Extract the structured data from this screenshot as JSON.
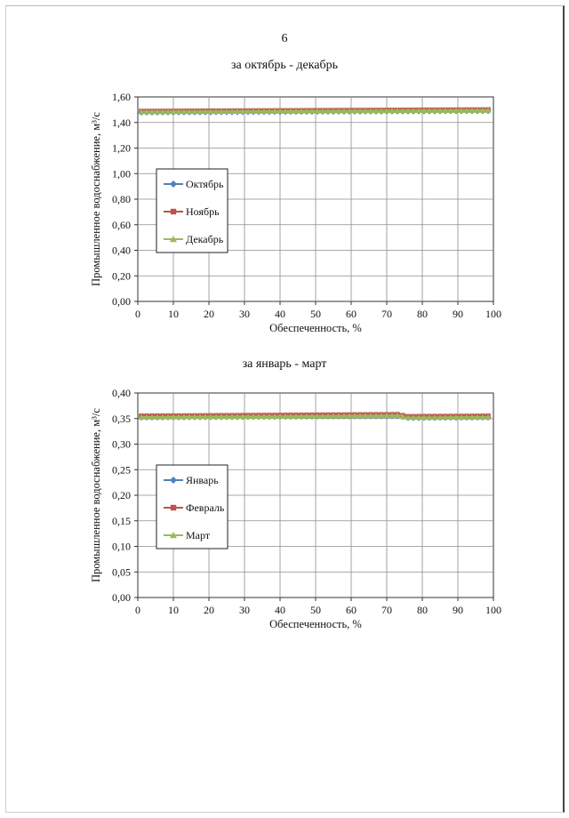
{
  "page": {
    "number": "6"
  },
  "chart_data": [
    {
      "type": "line",
      "title": "за октябрь - декабрь",
      "xlabel": "Обеспеченность, %",
      "ylabel": "Промышленное водоснабжение, м³/с",
      "xlim": [
        0,
        100
      ],
      "ylim": [
        0,
        1.6
      ],
      "x_ticks": [
        "0",
        "10",
        "20",
        "30",
        "40",
        "50",
        "60",
        "70",
        "80",
        "90",
        "100"
      ],
      "y_ticks": [
        "0,00",
        "0,20",
        "0,40",
        "0,60",
        "0,80",
        "1,00",
        "1,20",
        "1,40",
        "1,60"
      ],
      "grid": true,
      "legend_position": "left",
      "series": [
        {
          "name": "Октябрь",
          "color": "#4f81bd",
          "marker": "diamond",
          "x": [
            1,
            99
          ],
          "y": [
            1.478,
            1.49
          ]
        },
        {
          "name": "Ноябрь",
          "color": "#c0504d",
          "marker": "square",
          "x": [
            1,
            99
          ],
          "y": [
            1.488,
            1.5
          ]
        },
        {
          "name": "Декабрь",
          "color": "#9bbb59",
          "marker": "triangle",
          "x": [
            1,
            99
          ],
          "y": [
            1.484,
            1.496
          ]
        }
      ]
    },
    {
      "type": "line",
      "title": "за январь - март",
      "xlabel": "Обеспеченность, %",
      "ylabel": "Промышленное водоснабжение, м³/с",
      "xlim": [
        0,
        100
      ],
      "ylim": [
        0,
        0.4
      ],
      "x_ticks": [
        "0",
        "10",
        "20",
        "30",
        "40",
        "50",
        "60",
        "70",
        "80",
        "90",
        "100"
      ],
      "y_ticks": [
        "0,00",
        "0,05",
        "0,10",
        "0,15",
        "0,20",
        "0,25",
        "0,30",
        "0,35",
        "0,40"
      ],
      "grid": true,
      "legend_position": "left",
      "series": [
        {
          "name": "Январь",
          "color": "#4f81bd",
          "marker": "diamond",
          "x": [
            1,
            74,
            75,
            99
          ],
          "y": [
            0.352,
            0.355,
            0.351,
            0.352
          ]
        },
        {
          "name": "Февраль",
          "color": "#c0504d",
          "marker": "square",
          "x": [
            1,
            74,
            75,
            99
          ],
          "y": [
            0.355,
            0.358,
            0.354,
            0.355
          ]
        },
        {
          "name": "Март",
          "color": "#9bbb59",
          "marker": "triangle",
          "x": [
            1,
            74,
            75,
            99
          ],
          "y": [
            0.353,
            0.356,
            0.352,
            0.353
          ]
        }
      ]
    }
  ]
}
